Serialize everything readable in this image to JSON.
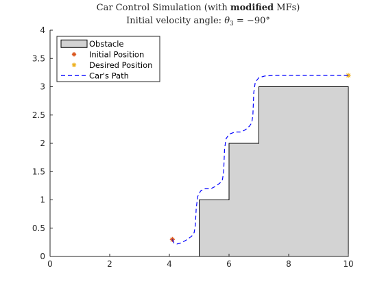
{
  "chart_data": {
    "type": "line",
    "title": {
      "prefix": "Car Control Simulation (with ",
      "bold": "modified",
      "suffix": " MFs)"
    },
    "subtitle": {
      "prefix": "Initial velocity angle: ",
      "theta": "θ",
      "subscript": "3",
      "suffix": " = −90°"
    },
    "xlabel": "",
    "ylabel": "",
    "xlim": [
      0,
      10
    ],
    "ylim": [
      0,
      4
    ],
    "xticks": [
      0,
      2,
      4,
      6,
      8,
      10
    ],
    "yticks": [
      0,
      0.5,
      1,
      1.5,
      2,
      2.5,
      3,
      3.5,
      4
    ],
    "xtick_labels": [
      "0",
      "2",
      "4",
      "6",
      "8",
      "10"
    ],
    "ytick_labels": [
      "0",
      "0.5",
      "1",
      "1.5",
      "2",
      "2.5",
      "3",
      "3.5",
      "4"
    ],
    "grid": false,
    "legend_position": "top-left",
    "series": [
      {
        "name": "Obstacle",
        "kind": "filled-polygon",
        "color": "#d3d3d3",
        "edge_color": "#000000",
        "x": [
          5,
          5,
          6,
          6,
          7,
          7,
          10,
          10
        ],
        "y": [
          0,
          1,
          1,
          2,
          2,
          3,
          3,
          0
        ]
      },
      {
        "name": "Initial Position",
        "kind": "marker",
        "marker": "asterisk",
        "color": "#d95319",
        "x": [
          4.1
        ],
        "y": [
          0.3
        ]
      },
      {
        "name": "Desired Position",
        "kind": "marker",
        "marker": "asterisk",
        "color": "#edb120",
        "x": [
          10
        ],
        "y": [
          3.2
        ]
      },
      {
        "name": "Car's Path",
        "kind": "dashed-line",
        "color": "#0000ff",
        "x": [
          4.1,
          4.15,
          4.25,
          4.4,
          4.6,
          4.75,
          4.83,
          4.87,
          4.9,
          4.95,
          5.05,
          5.2,
          5.4,
          5.55,
          5.7,
          5.78,
          5.82,
          5.85,
          5.9,
          6.0,
          6.2,
          6.4,
          6.55,
          6.68,
          6.76,
          6.8,
          6.83,
          6.88,
          7.0,
          7.2,
          7.5,
          8.0,
          9.0,
          10.0
        ],
        "y": [
          0.3,
          0.24,
          0.22,
          0.24,
          0.3,
          0.36,
          0.42,
          0.55,
          0.85,
          1.06,
          1.16,
          1.2,
          1.2,
          1.24,
          1.3,
          1.36,
          1.5,
          1.9,
          2.08,
          2.16,
          2.2,
          2.2,
          2.24,
          2.3,
          2.36,
          2.5,
          2.9,
          3.08,
          3.16,
          3.19,
          3.2,
          3.2,
          3.2,
          3.2
        ]
      }
    ]
  }
}
